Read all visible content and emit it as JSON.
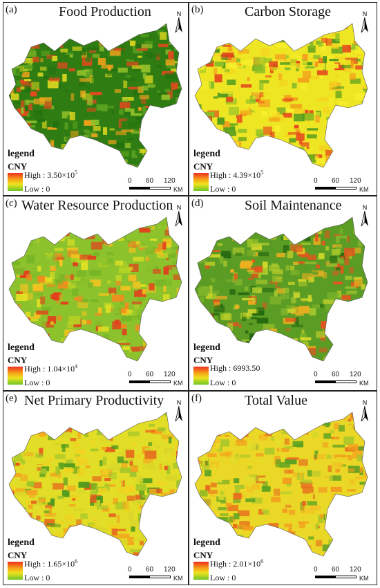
{
  "legend": {
    "word": "legend",
    "unit": "CNY",
    "low": "Low : 0"
  },
  "scale": {
    "ticks": [
      "0",
      "60",
      "120"
    ],
    "unit": "KM"
  },
  "north_label": "N",
  "panels": [
    {
      "label": "(a)",
      "title": "Food Production",
      "high_prefix": "High : 3.50×10",
      "high_exp": "5",
      "palette": [
        "#2f7d12",
        "#247010",
        "#5aa11f",
        "#8fbf2a",
        "#d8d51f",
        "#f2a21c",
        "#e04a1d"
      ]
    },
    {
      "label": "(b)",
      "title": "Carbon Storage",
      "high_prefix": "High : 4.39×10",
      "high_exp": "5",
      "palette": [
        "#eee623",
        "#f4d21e",
        "#f39b1c",
        "#e4421c",
        "#8bbe28",
        "#4e9a1e",
        "#f6ee2a"
      ]
    },
    {
      "label": "(c)",
      "title": "Water Resource Production",
      "high_prefix": "High : 1.04×10",
      "high_exp": "4",
      "palette": [
        "#8cc22c",
        "#b4d225",
        "#dfe024",
        "#f2c420",
        "#f08c1e",
        "#e2401c",
        "#77b526"
      ]
    },
    {
      "label": "(d)",
      "title": "Soil Maintenance",
      "high_prefix": "High : 6993.50",
      "high_exp": "",
      "palette": [
        "#5b9c24",
        "#7eb42a",
        "#a9c92c",
        "#d1d82a",
        "#f0b020",
        "#e4541d",
        "#25680f"
      ]
    },
    {
      "label": "(e)",
      "title": "Net Primary Productivity",
      "high_prefix": "High : 1.65×10",
      "high_exp": "6",
      "palette": [
        "#e2dd26",
        "#f1d220",
        "#f3a51e",
        "#e75a1d",
        "#9cc42a",
        "#4f9a1f",
        "#d8d62a"
      ]
    },
    {
      "label": "(f)",
      "title": "Total Value",
      "high_prefix": "High : 2.01×10",
      "high_exp": "6",
      "palette": [
        "#ead726",
        "#f1c022",
        "#f39d1e",
        "#e7691d",
        "#a9c72b",
        "#5da322",
        "#e3dd2a"
      ]
    }
  ]
}
